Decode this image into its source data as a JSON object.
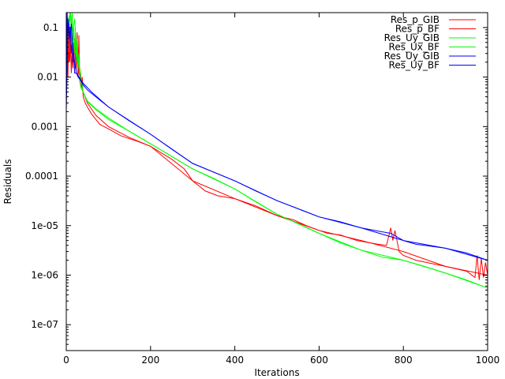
{
  "chart_data": {
    "type": "line",
    "title": "",
    "xlabel": "Iterations",
    "ylabel": "Residuals",
    "xlim": [
      0,
      1000
    ],
    "ylim": [
      3e-08,
      0.2
    ],
    "yscale": "log",
    "grid": false,
    "legend_position": "top-right",
    "x_ticks": [
      {
        "value": 0,
        "label": "0"
      },
      {
        "value": 200,
        "label": "200"
      },
      {
        "value": 400,
        "label": "400"
      },
      {
        "value": 600,
        "label": "600"
      },
      {
        "value": 800,
        "label": "800"
      },
      {
        "value": 1000,
        "label": "1000"
      }
    ],
    "y_ticks": [
      {
        "value": 0.1,
        "label": "0.1"
      },
      {
        "value": 0.01,
        "label": "0.01"
      },
      {
        "value": 0.001,
        "label": "0.001"
      },
      {
        "value": 0.0001,
        "label": "0.0001"
      },
      {
        "value": 1e-05,
        "label": "1e-05"
      },
      {
        "value": 1e-06,
        "label": "1e-06"
      },
      {
        "value": 1e-07,
        "label": "1e-07"
      }
    ],
    "series": [
      {
        "name": "Res_p_GIB",
        "color": "#ff0000",
        "x": [
          0,
          2,
          4,
          6,
          8,
          10,
          12,
          14,
          16,
          18,
          20,
          22,
          24,
          26,
          28,
          30,
          32,
          34,
          36,
          38,
          40,
          45,
          50,
          60,
          70,
          80,
          100,
          130,
          170,
          200,
          250,
          280,
          300,
          330,
          360,
          400,
          450,
          500,
          540,
          570,
          600,
          620,
          650,
          690,
          740,
          760,
          770,
          775,
          780,
          790,
          800,
          830,
          900,
          950,
          970,
          975,
          980,
          985,
          990,
          995,
          1000
        ],
        "y": [
          0.003,
          0.08,
          0.01,
          0.15,
          0.02,
          0.06,
          0.012,
          0.03,
          0.015,
          0.05,
          0.012,
          0.03,
          0.02,
          0.08,
          0.01,
          0.07,
          0.008,
          0.012,
          0.006,
          0.01,
          0.004,
          0.003,
          0.0025,
          0.0018,
          0.0014,
          0.0011,
          0.0009,
          0.00065,
          0.0005,
          0.0004,
          0.00022,
          0.00014,
          8e-05,
          5e-05,
          4e-05,
          3.5e-05,
          2.5e-05,
          1.6e-05,
          1.3e-05,
          1e-05,
          8e-06,
          7e-06,
          6.5e-06,
          5e-06,
          4.2e-06,
          4e-06,
          9e-06,
          5e-06,
          8e-06,
          3e-06,
          2.5e-06,
          2e-06,
          1.5e-06,
          1.2e-06,
          9e-07,
          2.5e-06,
          8e-07,
          2.2e-06,
          9e-07,
          1.8e-06,
          1e-06
        ]
      },
      {
        "name": "Res_p_BF",
        "color": "#ff0000",
        "x": [
          0,
          3,
          6,
          9,
          12,
          15,
          18,
          21,
          24,
          27,
          30,
          35,
          40,
          50,
          70,
          100,
          150,
          200,
          300,
          400,
          500,
          600,
          700,
          800,
          900,
          1000
        ],
        "y": [
          0.004,
          0.05,
          0.02,
          0.1,
          0.015,
          0.04,
          0.02,
          0.06,
          0.015,
          0.04,
          0.012,
          0.009,
          0.005,
          0.003,
          0.0017,
          0.001,
          0.0006,
          0.0004,
          8e-05,
          3.5e-05,
          1.6e-05,
          8e-06,
          5e-06,
          3e-06,
          1.5e-06,
          1e-06
        ]
      },
      {
        "name": "Res_Uy_GIB",
        "color": "#00ff00",
        "x": [
          0,
          5,
          10,
          12,
          14,
          16,
          18,
          20,
          22,
          24,
          26,
          28,
          30,
          32,
          35,
          40,
          45,
          50,
          70,
          100,
          150,
          200,
          250,
          300,
          350,
          400,
          450,
          500,
          550,
          600,
          650,
          700,
          750,
          800,
          850,
          900,
          950,
          1000
        ],
        "y": [
          0.06,
          0.15,
          0.25,
          0.05,
          0.3,
          0.04,
          0.1,
          0.03,
          0.08,
          0.02,
          0.06,
          0.015,
          0.03,
          0.008,
          0.006,
          0.005,
          0.004,
          0.0032,
          0.0022,
          0.0014,
          0.0008,
          0.00045,
          0.00025,
          0.00014,
          9e-05,
          5.5e-05,
          3e-05,
          1.7e-05,
          1.1e-05,
          7e-06,
          4.5e-06,
          3.2e-06,
          2.3e-06,
          2e-06,
          1.5e-06,
          1.1e-06,
          8e-07,
          5.5e-07
        ]
      },
      {
        "name": "Res_Ux_BF",
        "color": "#00ff00",
        "x": [
          0,
          5,
          10,
          15,
          20,
          25,
          30,
          35,
          40,
          50,
          70,
          100,
          150,
          200,
          300,
          400,
          500,
          600,
          700,
          800,
          900,
          1000
        ],
        "y": [
          0.05,
          0.1,
          0.2,
          0.08,
          0.15,
          0.03,
          0.02,
          0.01,
          0.005,
          0.0033,
          0.0023,
          0.0015,
          0.0008,
          0.00045,
          0.00014,
          5.5e-05,
          1.7e-05,
          7e-06,
          3.2e-06,
          2e-06,
          1.1e-06,
          5.5e-07
        ]
      },
      {
        "name": "Res_Uy_GIB",
        "color": "#0000ff",
        "x": [
          0,
          2,
          4,
          6,
          8,
          10,
          12,
          14,
          16,
          18,
          20,
          24,
          28,
          32,
          36,
          40,
          50,
          70,
          100,
          150,
          200,
          250,
          300,
          350,
          400,
          450,
          500,
          550,
          600,
          650,
          700,
          750,
          770,
          800,
          830,
          850,
          900,
          950,
          1000
        ],
        "y": [
          0.003,
          0.2,
          0.08,
          0.15,
          0.06,
          0.1,
          0.03,
          0.05,
          0.02,
          0.03,
          0.012,
          0.012,
          0.01,
          0.009,
          0.008,
          0.007,
          0.0055,
          0.004,
          0.0025,
          0.0013,
          0.0007,
          0.00035,
          0.00018,
          0.00012,
          8e-05,
          5e-05,
          3.2e-05,
          2.2e-05,
          1.5e-05,
          1.2e-05,
          9e-06,
          7.5e-06,
          7e-06,
          5e-06,
          4.2e-06,
          4e-06,
          3.5e-06,
          2.8e-06,
          2e-06
        ]
      },
      {
        "name": "Res_Uy_BF",
        "color": "#0000ff",
        "x": [
          0,
          4,
          8,
          12,
          16,
          20,
          25,
          30,
          40,
          60,
          100,
          200,
          300,
          400,
          500,
          600,
          700,
          800,
          900,
          1000
        ],
        "y": [
          0.002,
          0.1,
          0.06,
          0.12,
          0.03,
          0.02,
          0.012,
          0.01,
          0.0075,
          0.005,
          0.0025,
          0.0007,
          0.00018,
          8e-05,
          3.2e-05,
          1.5e-05,
          9e-06,
          5e-06,
          3.5e-06,
          2e-06
        ]
      }
    ]
  }
}
